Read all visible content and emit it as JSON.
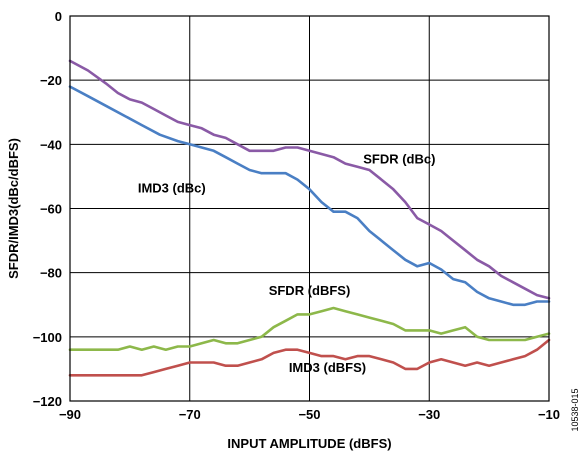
{
  "chart_data": {
    "type": "line",
    "xlabel": "INPUT AMPLITUDE (dBFS)",
    "ylabel": "SFDR/IMD3(dBc/dBFS)",
    "xlim": [
      -90,
      -10
    ],
    "ylim": [
      -120,
      0
    ],
    "xticks": [
      "−90",
      "−70",
      "−50",
      "−30",
      "−10"
    ],
    "xtick_values": [
      -90,
      -70,
      -50,
      -30,
      -10
    ],
    "yticks": [
      "0",
      "−20",
      "−40",
      "−60",
      "−80",
      "−100",
      "−120"
    ],
    "ytick_values": [
      0,
      -20,
      -40,
      -60,
      -80,
      -100,
      -120
    ],
    "grid": true,
    "figure_id": "10538-015",
    "series": [
      {
        "name": "SFDR (dBc)",
        "color": "#8a5aa6",
        "x": [
          -90,
          -87,
          -84,
          -82,
          -80,
          -78,
          -76,
          -74,
          -72,
          -70,
          -68,
          -66,
          -64,
          -62,
          -60,
          -58,
          -56,
          -54,
          -52,
          -50,
          -48,
          -46,
          -44,
          -42,
          -40,
          -38,
          -36,
          -34,
          -32,
          -30,
          -28,
          -26,
          -24,
          -22,
          -20,
          -18,
          -16,
          -14,
          -12,
          -10
        ],
        "y": [
          -14,
          -17,
          -21,
          -24,
          -26,
          -27,
          -29,
          -31,
          -33,
          -34,
          -35,
          -37,
          -38,
          -40,
          -42,
          -42,
          -42,
          -41,
          -41,
          -42,
          -43,
          -44,
          -46,
          -47,
          -48,
          -51,
          -54,
          -58,
          -63,
          -65,
          -67,
          -70,
          -73,
          -76,
          -78,
          -81,
          -83,
          -85,
          -87,
          -88
        ]
      },
      {
        "name": "IMD3 (dBc)",
        "color": "#4a7fc4",
        "x": [
          -90,
          -87,
          -84,
          -81,
          -78,
          -75,
          -72,
          -70,
          -68,
          -66,
          -64,
          -62,
          -60,
          -58,
          -56,
          -54,
          -52,
          -50,
          -48,
          -46,
          -44,
          -42,
          -40,
          -38,
          -36,
          -34,
          -32,
          -30,
          -28,
          -26,
          -24,
          -22,
          -20,
          -18,
          -16,
          -14,
          -12,
          -10
        ],
        "y": [
          -22,
          -25,
          -28,
          -31,
          -34,
          -37,
          -39,
          -40,
          -41,
          -42,
          -44,
          -46,
          -48,
          -49,
          -49,
          -49,
          -51,
          -54,
          -58,
          -61,
          -61,
          -63,
          -67,
          -70,
          -73,
          -76,
          -78,
          -77,
          -79,
          -82,
          -83,
          -86,
          -88,
          -89,
          -90,
          -90,
          -89,
          -89
        ]
      },
      {
        "name": "SFDR (dBFS)",
        "color": "#8db84a",
        "x": [
          -90,
          -86,
          -82,
          -80,
          -78,
          -76,
          -74,
          -72,
          -70,
          -68,
          -66,
          -64,
          -62,
          -60,
          -58,
          -56,
          -54,
          -52,
          -50,
          -48,
          -46,
          -44,
          -42,
          -40,
          -38,
          -36,
          -34,
          -32,
          -30,
          -28,
          -26,
          -24,
          -22,
          -20,
          -18,
          -16,
          -14,
          -12,
          -10
        ],
        "y": [
          -104,
          -104,
          -104,
          -103,
          -104,
          -103,
          -104,
          -103,
          -103,
          -102,
          -101,
          -102,
          -102,
          -101,
          -100,
          -97,
          -95,
          -93,
          -93,
          -92,
          -91,
          -92,
          -93,
          -94,
          -95,
          -96,
          -98,
          -98,
          -98,
          -99,
          -98,
          -97,
          -100,
          -101,
          -101,
          -101,
          -101,
          -100,
          -99
        ]
      },
      {
        "name": "IMD3 (dBFS)",
        "color": "#c0504d",
        "x": [
          -90,
          -86,
          -82,
          -78,
          -76,
          -74,
          -72,
          -70,
          -68,
          -66,
          -64,
          -62,
          -60,
          -58,
          -56,
          -54,
          -52,
          -50,
          -48,
          -46,
          -44,
          -42,
          -40,
          -38,
          -36,
          -34,
          -32,
          -30,
          -28,
          -26,
          -24,
          -22,
          -20,
          -18,
          -16,
          -14,
          -12,
          -10
        ],
        "y": [
          -112,
          -112,
          -112,
          -112,
          -111,
          -110,
          -109,
          -108,
          -108,
          -108,
          -109,
          -109,
          -108,
          -107,
          -105,
          -104,
          -104,
          -105,
          -106,
          -106,
          -107,
          -106,
          -106,
          -107,
          -108,
          -110,
          -110,
          -108,
          -107,
          -108,
          -109,
          -108,
          -109,
          -108,
          -107,
          -106,
          -104,
          -101
        ]
      }
    ],
    "annotations": [
      {
        "text": "SFDR (dBc)",
        "x": -35,
        "y": -46
      },
      {
        "text": "IMD3 (dBc)",
        "x": -73,
        "y": -55
      },
      {
        "text": "SFDR (dBFS)",
        "x": -50,
        "y": -87
      },
      {
        "text": "IMD3 (dBFS)",
        "x": -47,
        "y": -111
      }
    ]
  }
}
